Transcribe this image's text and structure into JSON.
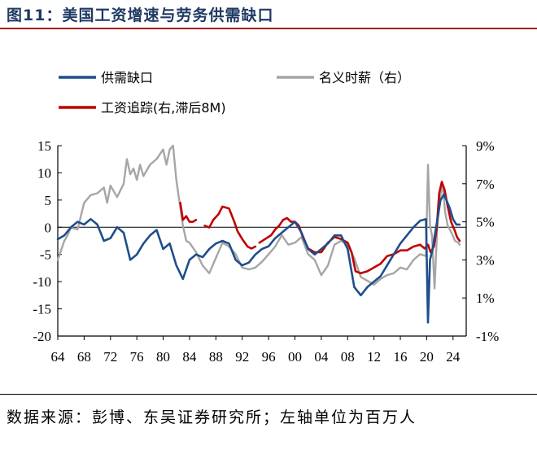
{
  "header": {
    "title": "图11：美国工资增速与劳务供需缺口"
  },
  "footer": {
    "source": "数据来源：彭博、东吴证券研究所；左轴单位为百万人"
  },
  "colors": {
    "gap": "#1f4e8c",
    "wage": "#a6a6a6",
    "tracker": "#c00000",
    "title": "#1f3a63",
    "rule": "#a61c1c"
  },
  "chart_data": {
    "type": "line",
    "x_ticks": [
      "64",
      "68",
      "72",
      "76",
      "80",
      "84",
      "88",
      "92",
      "96",
      "00",
      "04",
      "08",
      "12",
      "16",
      "20",
      "24"
    ],
    "xlim": [
      1964,
      2026
    ],
    "y_left": {
      "ticks": [
        "15",
        "10",
        "5",
        "0",
        "-5",
        "-10",
        "-15",
        "-20"
      ],
      "range": [
        -20,
        15
      ]
    },
    "y_right": {
      "ticks": [
        "9%",
        "7%",
        "5%",
        "3%",
        "1%",
        "-1%"
      ],
      "range": [
        -1,
        9
      ]
    },
    "legend": [
      {
        "label": "供需缺口",
        "series": "gap"
      },
      {
        "label": "名义时薪（右）",
        "series": "wage"
      },
      {
        "label": "工资追踪(右,滞后8M)",
        "series": "tracker"
      }
    ],
    "series": [
      {
        "name": "供需缺口",
        "key": "gap",
        "axis": "left",
        "points": [
          [
            1964,
            -2.2
          ],
          [
            1965,
            -1.5
          ],
          [
            1966,
            0
          ],
          [
            1967,
            1
          ],
          [
            1968,
            0.5
          ],
          [
            1969,
            1.5
          ],
          [
            1970,
            0.5
          ],
          [
            1971,
            -2.5
          ],
          [
            1972,
            -2
          ],
          [
            1973,
            0
          ],
          [
            1974,
            -1
          ],
          [
            1975,
            -6
          ],
          [
            1976,
            -5
          ],
          [
            1977,
            -3
          ],
          [
            1978,
            -1.5
          ],
          [
            1979,
            -0.5
          ],
          [
            1980,
            -4
          ],
          [
            1981,
            -3
          ],
          [
            1982,
            -7
          ],
          [
            1983,
            -9.5
          ],
          [
            1984,
            -6
          ],
          [
            1985,
            -5
          ],
          [
            1986,
            -5.5
          ],
          [
            1987,
            -4
          ],
          [
            1988,
            -3
          ],
          [
            1989,
            -2.5
          ],
          [
            1990,
            -3
          ],
          [
            1991,
            -6
          ],
          [
            1992,
            -7
          ],
          [
            1993,
            -6.5
          ],
          [
            1994,
            -5
          ],
          [
            1995,
            -4
          ],
          [
            1996,
            -3.5
          ],
          [
            1997,
            -2
          ],
          [
            1998,
            -1
          ],
          [
            1999,
            0
          ],
          [
            2000,
            1
          ],
          [
            2001,
            -1
          ],
          [
            2002,
            -4
          ],
          [
            2003,
            -5
          ],
          [
            2004,
            -4
          ],
          [
            2005,
            -3
          ],
          [
            2006,
            -1.5
          ],
          [
            2007,
            -1.5
          ],
          [
            2008,
            -4
          ],
          [
            2009,
            -11
          ],
          [
            2010,
            -12.5
          ],
          [
            2011,
            -11
          ],
          [
            2012,
            -10
          ],
          [
            2013,
            -9
          ],
          [
            2014,
            -7
          ],
          [
            2015,
            -5
          ],
          [
            2016,
            -3
          ],
          [
            2017,
            -1.5
          ],
          [
            2018,
            0
          ],
          [
            2019,
            1.2
          ],
          [
            2019.9,
            1.5
          ],
          [
            2020.2,
            -17.5
          ],
          [
            2020.5,
            -6
          ],
          [
            2020.9,
            -4
          ],
          [
            2021.3,
            -1
          ],
          [
            2021.7,
            2
          ],
          [
            2022.1,
            5
          ],
          [
            2022.6,
            6
          ],
          [
            2023,
            5
          ],
          [
            2023.5,
            3.5
          ],
          [
            2024,
            1.5
          ],
          [
            2024.5,
            0.5
          ],
          [
            2025,
            0.5
          ]
        ]
      },
      {
        "name": "名义时薪（右）",
        "key": "wage",
        "axis": "right",
        "points": [
          [
            1964,
            3
          ],
          [
            1964.5,
            3.5
          ],
          [
            1965,
            4
          ],
          [
            1965.5,
            4.3
          ],
          [
            1966,
            4.7
          ],
          [
            1967,
            4.6
          ],
          [
            1968,
            6
          ],
          [
            1969,
            6.4
          ],
          [
            1970,
            6.5
          ],
          [
            1971,
            6.8
          ],
          [
            1971.5,
            6
          ],
          [
            1972,
            6.9
          ],
          [
            1973,
            6.3
          ],
          [
            1974,
            7
          ],
          [
            1974.5,
            8.3
          ],
          [
            1975,
            7.5
          ],
          [
            1975.5,
            7.8
          ],
          [
            1976,
            7.2
          ],
          [
            1976.5,
            8
          ],
          [
            1977,
            7.4
          ],
          [
            1978,
            8
          ],
          [
            1979,
            8.3
          ],
          [
            1980,
            8.8
          ],
          [
            1980.5,
            8
          ],
          [
            1981,
            8.8
          ],
          [
            1981.5,
            9
          ],
          [
            1982,
            7.2
          ],
          [
            1983,
            4.8
          ],
          [
            1983.5,
            4
          ],
          [
            1984,
            3.9
          ],
          [
            1985,
            3.4
          ],
          [
            1986,
            2.7
          ],
          [
            1987,
            2.3
          ],
          [
            1988,
            3.1
          ],
          [
            1989,
            3.9
          ],
          [
            1990,
            3.7
          ],
          [
            1991,
            3.3
          ],
          [
            1992,
            2.6
          ],
          [
            1993,
            2.5
          ],
          [
            1994,
            2.6
          ],
          [
            1995,
            2.9
          ],
          [
            1996,
            3.3
          ],
          [
            1997,
            3.7
          ],
          [
            1998,
            4.3
          ],
          [
            1999,
            3.8
          ],
          [
            2000,
            3.9
          ],
          [
            2001,
            4.2
          ],
          [
            2002,
            3.3
          ],
          [
            2003,
            3
          ],
          [
            2004,
            2.2
          ],
          [
            2005,
            2.7
          ],
          [
            2006,
            3.8
          ],
          [
            2007,
            4
          ],
          [
            2008,
            3.8
          ],
          [
            2009,
            3.1
          ],
          [
            2010,
            2.1
          ],
          [
            2011,
            1.9
          ],
          [
            2012,
            1.7
          ],
          [
            2013,
            2
          ],
          [
            2014,
            2.2
          ],
          [
            2015,
            2.3
          ],
          [
            2016,
            2.6
          ],
          [
            2017,
            2.5
          ],
          [
            2018,
            3
          ],
          [
            2019,
            3.3
          ],
          [
            2019.9,
            3.2
          ],
          [
            2020.2,
            8
          ],
          [
            2020.5,
            4.8
          ],
          [
            2020.8,
            4.3
          ],
          [
            2021.2,
            1.5
          ],
          [
            2021.6,
            4.7
          ],
          [
            2022,
            6.2
          ],
          [
            2022.4,
            7
          ],
          [
            2022.8,
            5.5
          ],
          [
            2023.2,
            4.8
          ],
          [
            2023.8,
            4.4
          ],
          [
            2024.3,
            4
          ],
          [
            2024.8,
            3.9
          ],
          [
            2025,
            3.8
          ]
        ]
      },
      {
        "name": "工资追踪(右,滞后8M)",
        "key": "tracker",
        "axis": "right",
        "points": [
          [
            1982.6,
            6
          ],
          [
            1983,
            5.1
          ],
          [
            1983.5,
            5.3
          ],
          [
            1984,
            5
          ],
          [
            1984.5,
            5
          ],
          [
            1985,
            5.1
          ],
          null,
          [
            1986.3,
            4.8
          ],
          [
            1987,
            4.7
          ],
          [
            1987.6,
            5.1
          ],
          [
            1988.4,
            5.4
          ],
          [
            1989,
            5.8
          ],
          [
            1990,
            5.7
          ],
          [
            1990.8,
            5
          ],
          [
            1991.3,
            4.5
          ],
          [
            1992,
            4.1
          ],
          [
            1992.8,
            3.7
          ],
          [
            1993.4,
            3.6
          ],
          [
            1994,
            3.7
          ],
          null,
          [
            1994.6,
            3.9
          ],
          [
            1995.5,
            4.1
          ],
          [
            1996.4,
            4.3
          ],
          [
            1997,
            4.6
          ],
          [
            1997.6,
            4.8
          ],
          [
            1998.2,
            5.1
          ],
          [
            1998.8,
            5.2
          ],
          [
            1999.4,
            5
          ],
          [
            2000,
            5
          ],
          [
            2000.6,
            4.8
          ],
          [
            2001.2,
            4.2
          ],
          [
            2002,
            3.6
          ],
          [
            2003,
            3.4
          ],
          [
            2004,
            3.4
          ],
          [
            2005,
            3.9
          ],
          [
            2006,
            4.2
          ],
          [
            2007,
            4.1
          ],
          [
            2008,
            3.9
          ],
          [
            2008.6,
            3.4
          ],
          [
            2009.2,
            2.4
          ],
          [
            2010,
            2.3
          ],
          [
            2011,
            2.4
          ],
          [
            2012,
            2.6
          ],
          [
            2013,
            2.8
          ],
          [
            2014,
            3.2
          ],
          [
            2015,
            3.3
          ],
          [
            2016,
            3.5
          ],
          [
            2017,
            3.5
          ],
          [
            2018,
            3.7
          ],
          [
            2019,
            3.8
          ],
          [
            2019.7,
            3.6
          ],
          [
            2020.2,
            3.8
          ],
          [
            2020.6,
            3.4
          ],
          [
            2021.1,
            3.7
          ],
          [
            2021.5,
            4.6
          ],
          [
            2021.9,
            6.5
          ],
          [
            2022.3,
            7.1
          ],
          [
            2022.7,
            6.7
          ],
          [
            2023.2,
            5.8
          ],
          [
            2023.7,
            5
          ],
          [
            2024.2,
            4.6
          ],
          [
            2024.6,
            4.2
          ],
          [
            2025,
            4
          ]
        ]
      }
    ]
  }
}
